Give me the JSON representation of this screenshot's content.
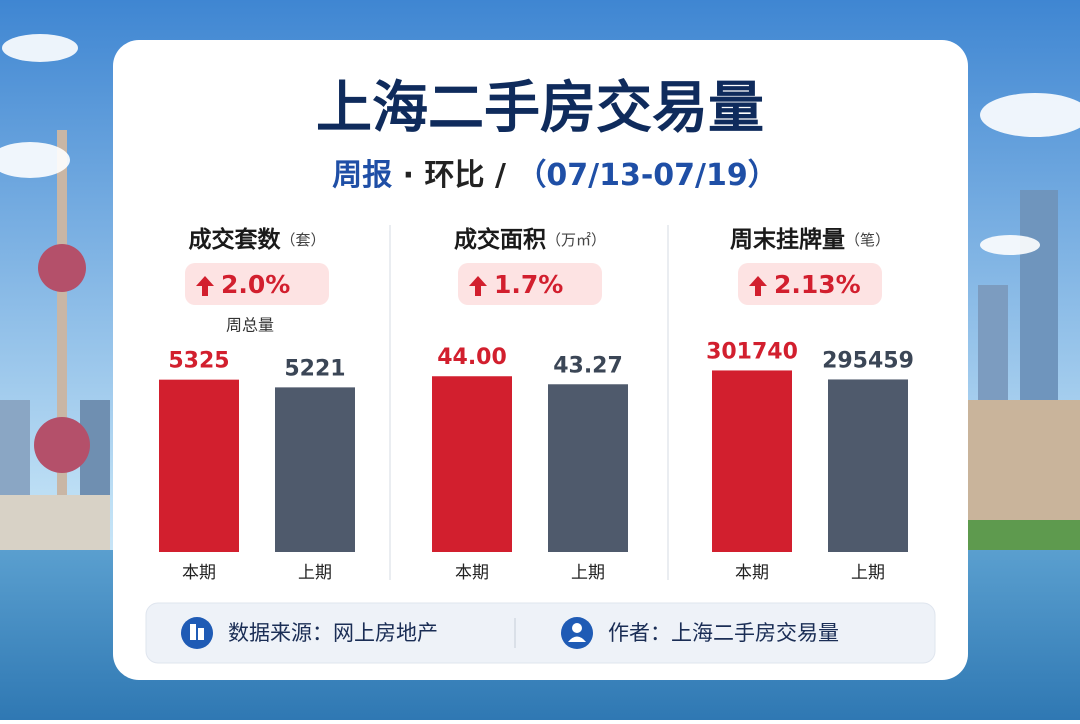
{
  "header": {
    "title": "上海二手房交易量",
    "subtitle": [
      "周报",
      "·",
      "环比",
      "/",
      "（07/13-07/19）"
    ]
  },
  "chart_data": [
    {
      "type": "bar",
      "title": "成交套数",
      "unit": "（套）",
      "change": "2.0%",
      "note": "周总量",
      "categories": [
        "本期",
        "上期"
      ],
      "values": [
        5325,
        5221
      ],
      "colors": [
        "#d21f2e",
        "#4f5a6c"
      ],
      "ylim": [
        3000,
        5860
      ]
    },
    {
      "type": "bar",
      "title": "成交面积",
      "unit": "（万㎡）",
      "change": "1.7%",
      "categories": [
        "本期",
        "上期"
      ],
      "values": [
        44,
        43.27
      ],
      "value_labels": [
        "44.00",
        "43.27"
      ],
      "colors": [
        "#d21f2e",
        "#4f5a6c"
      ],
      "ylim": [
        28,
        47.3
      ]
    },
    {
      "type": "bar",
      "title": "周末挂牌量",
      "unit": "（笔）",
      "change": "2.13%",
      "categories": [
        "本期",
        "上期"
      ],
      "values": [
        301740,
        295459
      ],
      "colors": [
        "#d21f2e",
        "#4f5a6c"
      ],
      "ylim": [
        175000,
        323000
      ]
    }
  ],
  "footer": {
    "source": "数据来源：网上房地产",
    "author": "作者：上海二手房交易量"
  }
}
